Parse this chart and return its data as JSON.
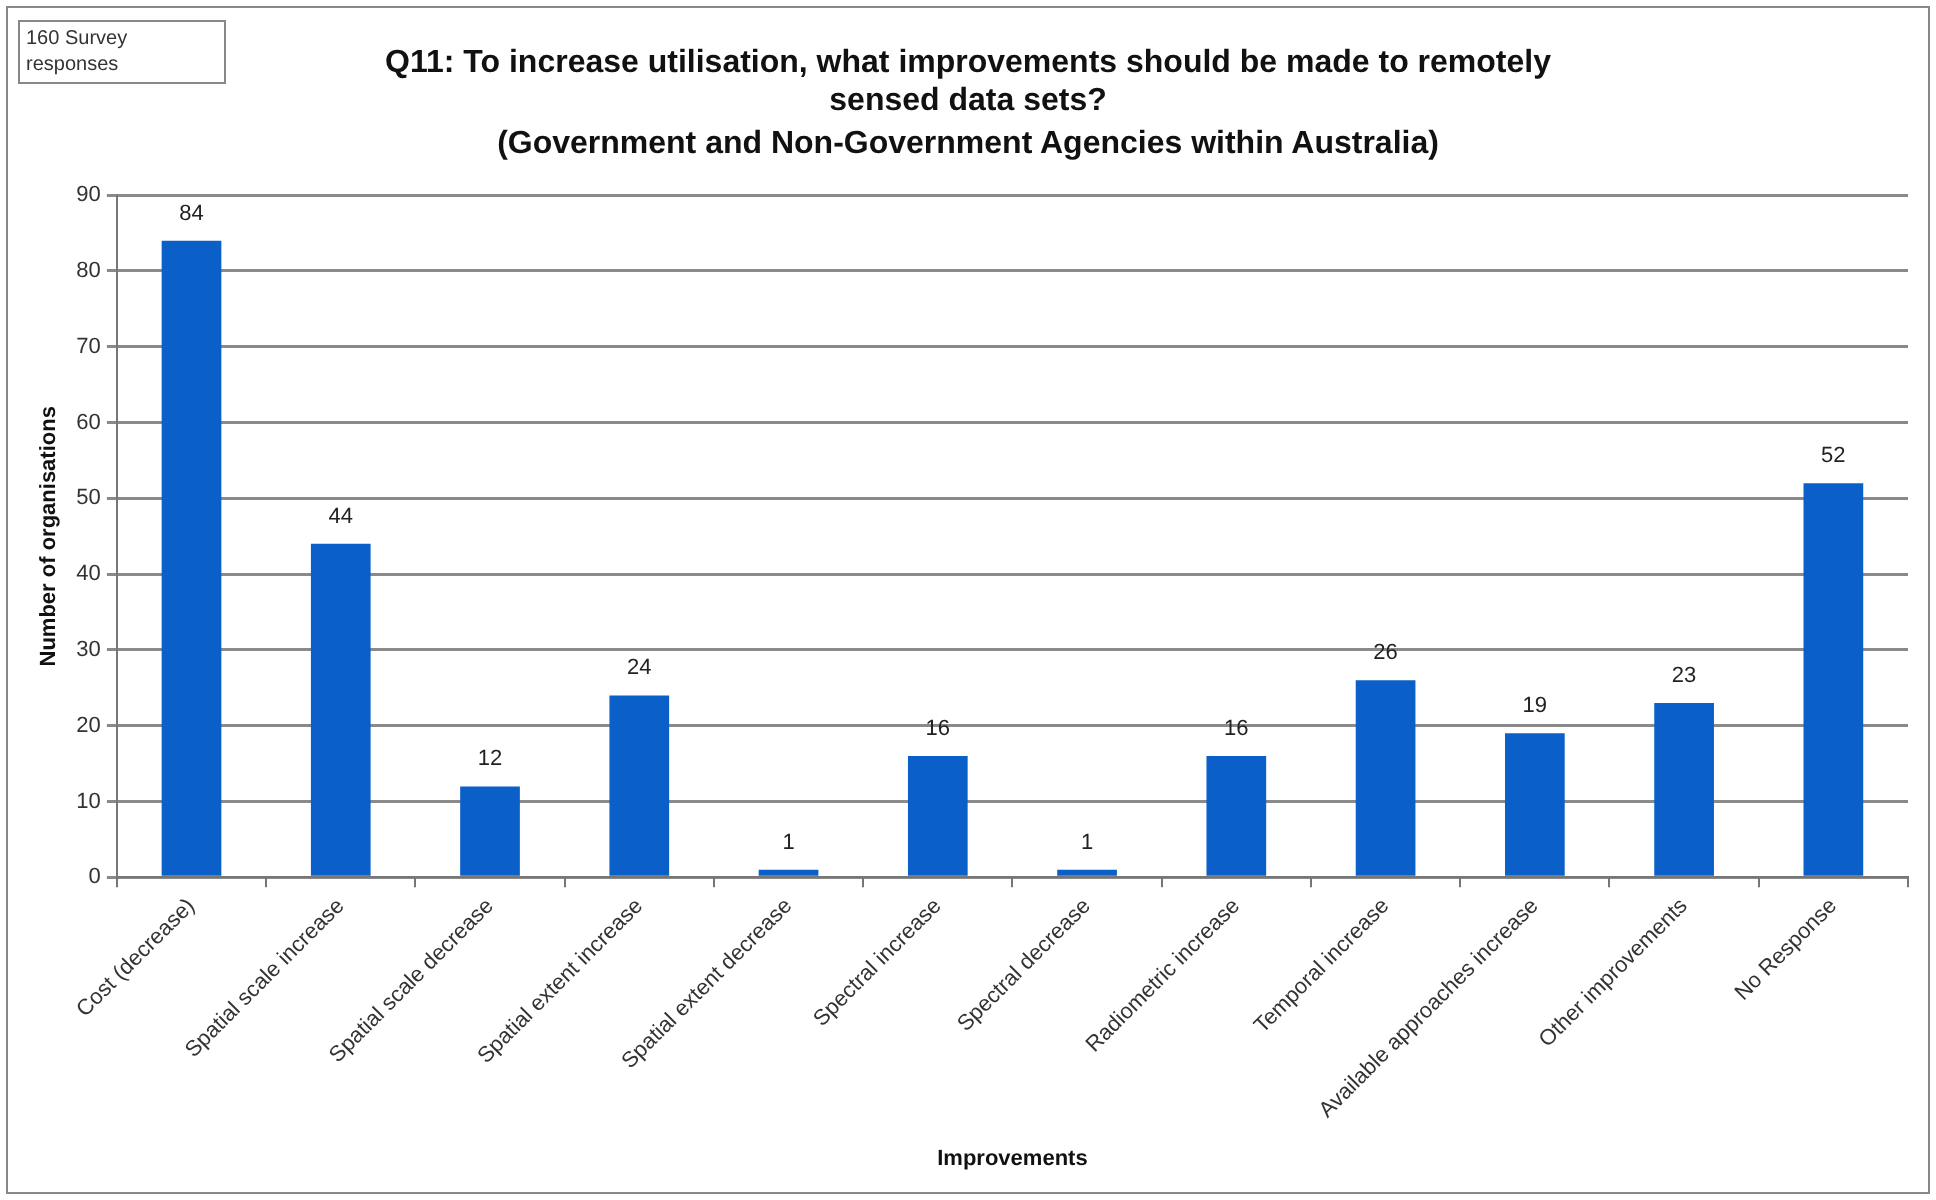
{
  "chart_data": {
    "type": "bar",
    "title": "Q11: To increase utilisation, what improvements should be made to remotely sensed data sets?",
    "subtitle": "(Government and Non-Government Agencies within Australia)",
    "xlabel": "Improvements",
    "ylabel": "Number of organisations",
    "annotations": [
      "160 Survey responses"
    ],
    "categories": [
      "Cost (decrease)",
      "Spatial scale increase",
      "Spatial scale decrease",
      "Spatial extent increase",
      "Spatial extent decrease",
      "Spectral increase",
      "Spectral decrease",
      "Radiometric increase",
      "Temporal increase",
      "Available approaches increase",
      "Other improvements",
      "No Response"
    ],
    "values": [
      84,
      44,
      12,
      24,
      1,
      16,
      1,
      16,
      26,
      19,
      23,
      52
    ],
    "color": "#0a60c8",
    "ylim": [
      0,
      90
    ],
    "yticks": [
      0,
      10,
      20,
      30,
      40,
      50,
      60,
      70,
      80,
      90
    ],
    "grid": "y",
    "data_labels": true
  }
}
